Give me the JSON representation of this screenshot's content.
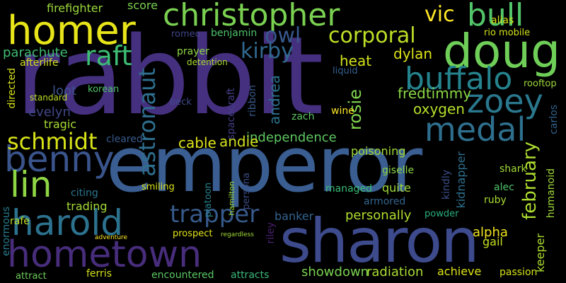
{
  "words": [
    {
      "text": "rabbit",
      "color": "#45307f"
    },
    {
      "text": "emperor",
      "color": "#3a5e91"
    },
    {
      "text": "sharon",
      "color": "#3d4a8c"
    },
    {
      "text": "hometown",
      "color": "#472d7b"
    },
    {
      "text": "homer",
      "color": "#e7e419"
    },
    {
      "text": "christopher",
      "color": "#7ad151"
    },
    {
      "text": "doug",
      "color": "#6ece58"
    },
    {
      "text": "bull",
      "color": "#52c569"
    },
    {
      "text": "benny",
      "color": "#3a548c"
    },
    {
      "text": "harold",
      "color": "#2c728e"
    },
    {
      "text": "lin",
      "color": "#8ed645"
    },
    {
      "text": "medal",
      "color": "#2e6f8e"
    },
    {
      "text": "zoey",
      "color": "#2a788e"
    },
    {
      "text": "buffalo",
      "color": "#25838e"
    },
    {
      "text": "raft",
      "color": "#3dbc74"
    },
    {
      "text": "corporal",
      "color": "#bddf26"
    },
    {
      "text": "schmidt",
      "color": "#d8e219"
    },
    {
      "text": "kirby",
      "color": "#31688e"
    },
    {
      "text": "owl",
      "color": "#38588c"
    },
    {
      "text": "vic",
      "color": "#fde725"
    },
    {
      "text": "astronaut",
      "color": "#2e6e8e"
    },
    {
      "text": "trapper",
      "color": "#375a8c"
    },
    {
      "text": "february",
      "color": "#addc30"
    },
    {
      "text": "firefighter",
      "color": "#9bd93c"
    },
    {
      "text": "score",
      "color": "#7ad151"
    },
    {
      "text": "parachute",
      "color": "#40bd72"
    },
    {
      "text": "heat",
      "color": "#d2e21b"
    },
    {
      "text": "dylan",
      "color": "#dde318"
    },
    {
      "text": "fredtimmy",
      "color": "#8bd646"
    },
    {
      "text": "oxygen",
      "color": "#b5de2b"
    },
    {
      "text": "rosie",
      "color": "#7fd34e"
    },
    {
      "text": "andrea",
      "color": "#2c738e"
    },
    {
      "text": "independence",
      "color": "#5ec962"
    },
    {
      "text": "cable",
      "color": "#dde318"
    },
    {
      "text": "andie",
      "color": "#d0e11c"
    },
    {
      "text": "poisoning",
      "color": "#a2da37"
    },
    {
      "text": "loot",
      "color": "#3b518b"
    },
    {
      "text": "evelyn",
      "color": "#404688"
    },
    {
      "text": "tragic",
      "color": "#a8db34"
    },
    {
      "text": "afterlife",
      "color": "#d2e21b"
    },
    {
      "text": "directed",
      "color": "#d8e219"
    },
    {
      "text": "trading",
      "color": "#a5db36"
    },
    {
      "text": "rafe",
      "color": "#c0df25"
    },
    {
      "text": "citing",
      "color": "#2a768e"
    },
    {
      "text": "enormous",
      "color": "#287c8e"
    },
    {
      "text": "attract",
      "color": "#6ccd5a"
    },
    {
      "text": "ferris",
      "color": "#d5e21a"
    },
    {
      "text": "encountered",
      "color": "#5ac864"
    },
    {
      "text": "attracts",
      "color": "#3ab97a"
    },
    {
      "text": "showdown",
      "color": "#7ad151"
    },
    {
      "text": "radiation",
      "color": "#a8db34"
    },
    {
      "text": "achieve",
      "color": "#dde318"
    },
    {
      "text": "passion",
      "color": "#d5e21a"
    },
    {
      "text": "keeper",
      "color": "#addc30"
    },
    {
      "text": "alpha",
      "color": "#f1e51d"
    },
    {
      "text": "personally",
      "color": "#b0dd2f"
    },
    {
      "text": "banker",
      "color": "#33638d"
    },
    {
      "text": "armored",
      "color": "#32648e"
    },
    {
      "text": "managed",
      "color": "#3bbb75"
    },
    {
      "text": "quite",
      "color": "#a0da39"
    },
    {
      "text": "giselle",
      "color": "#8bd646"
    },
    {
      "text": "gail",
      "color": "#c5e021"
    },
    {
      "text": "kidnapper",
      "color": "#2d718e"
    },
    {
      "text": "kindly",
      "color": "#3c4f8a"
    },
    {
      "text": "ruby",
      "color": "#a8db34"
    },
    {
      "text": "alec",
      "color": "#50c46a"
    },
    {
      "text": "shark",
      "color": "#a2da37"
    },
    {
      "text": "humanoid",
      "color": "#a0da39"
    },
    {
      "text": "carlos",
      "color": "#32648e"
    },
    {
      "text": "rooftop",
      "color": "#9dd93b"
    },
    {
      "text": "prayer",
      "color": "#8fd744"
    },
    {
      "text": "romeo",
      "color": "#404588"
    },
    {
      "text": "benjamin",
      "color": "#4ec36b"
    },
    {
      "text": "alias",
      "color": "#dae319"
    },
    {
      "text": "rio mobile",
      "color": "#d2e21b"
    },
    {
      "text": "detention",
      "color": "#aadc32"
    },
    {
      "text": "smiling",
      "color": "#d8e219"
    },
    {
      "text": "prospect",
      "color": "#e2e418"
    },
    {
      "text": "cleared",
      "color": "#38598c"
    },
    {
      "text": "korean",
      "color": "#50c46a"
    },
    {
      "text": "standard",
      "color": "#bade28"
    },
    {
      "text": "persona",
      "color": "#3c4f8a"
    },
    {
      "text": "platoon",
      "color": "#26828e"
    },
    {
      "text": "powder",
      "color": "#2ab07f"
    },
    {
      "text": "wine",
      "color": "#fde725"
    },
    {
      "text": "zach",
      "color": "#5cc863"
    },
    {
      "text": "liquid",
      "color": "#35608d"
    },
    {
      "text": "ribbon",
      "color": "#38588c"
    },
    {
      "text": "spacecraft",
      "color": "#433e85"
    },
    {
      "text": "hamilton",
      "color": "#9dd93b"
    },
    {
      "text": "riley",
      "color": "#481f70"
    },
    {
      "text": "beck",
      "color": "#3e4989"
    },
    {
      "text": "regardless",
      "color": "#a2da37"
    },
    {
      "text": "adventure",
      "color": "#fde725"
    }
  ]
}
